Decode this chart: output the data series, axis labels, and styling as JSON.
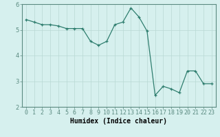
{
  "x": [
    0,
    1,
    2,
    3,
    4,
    5,
    6,
    7,
    8,
    9,
    10,
    11,
    12,
    13,
    14,
    15,
    16,
    17,
    18,
    19,
    20,
    21,
    22,
    23
  ],
  "y": [
    5.4,
    5.3,
    5.2,
    5.2,
    5.15,
    5.05,
    5.05,
    5.05,
    4.55,
    4.4,
    4.55,
    5.2,
    5.3,
    5.85,
    5.5,
    4.95,
    2.45,
    2.8,
    2.7,
    2.55,
    3.4,
    3.4,
    2.9,
    2.9
  ],
  "line_color": "#2e7d6e",
  "marker": "+",
  "marker_size": 3.5,
  "linewidth": 0.9,
  "xlabel": "Humidex (Indice chaleur)",
  "xlim": [
    -0.5,
    23.5
  ],
  "ylim": [
    2,
    6
  ],
  "yticks": [
    2,
    3,
    4,
    5,
    6
  ],
  "xticks": [
    0,
    1,
    2,
    3,
    4,
    5,
    6,
    7,
    8,
    9,
    10,
    11,
    12,
    13,
    14,
    15,
    16,
    17,
    18,
    19,
    20,
    21,
    22,
    23
  ],
  "background_color": "#d6f0ee",
  "grid_color": "#b8d8d4",
  "xlabel_fontsize": 7,
  "tick_fontsize": 6,
  "spine_color": "#5a8a80"
}
